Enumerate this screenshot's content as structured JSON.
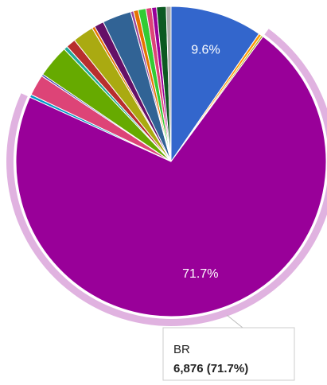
{
  "chart_data": {
    "type": "pie",
    "categories": [
      null,
      null,
      null,
      "BR",
      null,
      null,
      null,
      null,
      null,
      null,
      null,
      null,
      null,
      null,
      null,
      null,
      null,
      null,
      null,
      null,
      null
    ],
    "values": [
      9.6,
      0.3,
      0.2,
      71.7,
      0.3,
      2.2,
      0.2,
      3.4,
      0.4,
      1.0,
      2.2,
      0.3,
      1.0,
      3.0,
      0.3,
      0.5,
      0.8,
      0.6,
      0.5,
      1.0,
      0.5
    ],
    "value_labels": [
      "9.6%",
      null,
      null,
      "71.7%",
      null,
      null,
      null,
      null,
      null,
      null,
      null,
      null,
      null,
      null,
      null,
      null,
      null,
      null,
      null,
      null,
      null
    ],
    "colors": [
      "#3366cc",
      "#ff9900",
      "#aaaa11",
      "#990099",
      "#0099c6",
      "#dd4477",
      "#3b3eac",
      "#66aa00",
      "#22aa99",
      "#b82e2e",
      "#aaaa11",
      "#e67300",
      "#651067",
      "#316395",
      "#994499",
      "#e67300",
      "#33cc33",
      "#dd4477",
      "#990099",
      "#0c5922",
      "#aaaaaa"
    ],
    "highlight": 3,
    "tooltip": {
      "value": 6876,
      "label": "6,876 (71.7%)"
    }
  }
}
